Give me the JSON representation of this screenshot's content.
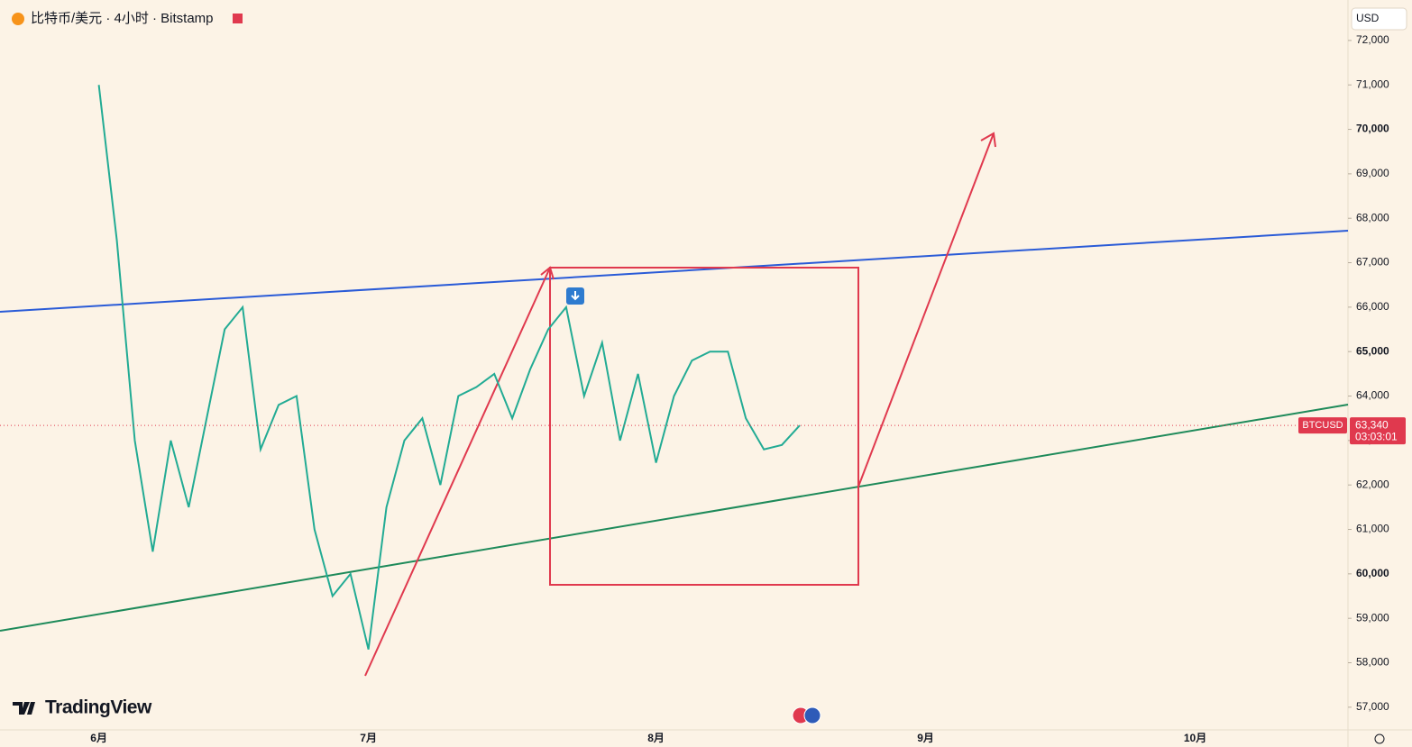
{
  "chart_data": {
    "type": "line",
    "title": "比特币/美元 · 4小时 · Bitstamp",
    "currency": "USD",
    "symbol": "BTCUSD",
    "current_price": {
      "value": 63340,
      "label": "63,340"
    },
    "countdown": "03:03:01",
    "brand": "TradingView",
    "categories": [
      null,
      null,
      null,
      null,
      null,
      "6月",
      null,
      null,
      null,
      null,
      null,
      null,
      null,
      null,
      null,
      null,
      null,
      null,
      null,
      null,
      "7月",
      null,
      null,
      null,
      null,
      null,
      null,
      null,
      null,
      null,
      null,
      null,
      null,
      null,
      null,
      null,
      "8月",
      null,
      null,
      null,
      null,
      null,
      null,
      null,
      null,
      null,
      null,
      null,
      null,
      null,
      null,
      "9月",
      null,
      null,
      null,
      null,
      null,
      null,
      null,
      null,
      null,
      null,
      null,
      null,
      null,
      null,
      "10月",
      null,
      null,
      null,
      null,
      null,
      null,
      null,
      null
    ],
    "series": [
      {
        "name": "BTCUSD",
        "color": "#22ab94",
        "values": [
          null,
          null,
          null,
          null,
          null,
          71000,
          67500,
          63000,
          60500,
          63000,
          61500,
          63500,
          65500,
          66000,
          62800,
          63800,
          64000,
          61000,
          59500,
          60000,
          58300,
          61500,
          63000,
          63500,
          62000,
          64000,
          64200,
          64500,
          63500,
          64600,
          65500,
          66000,
          64000,
          65200,
          63000,
          64500,
          62500,
          64000,
          64800,
          65000,
          65000,
          63500,
          62800,
          62900,
          63340,
          null,
          null,
          null,
          null,
          null,
          null,
          null,
          null,
          null,
          null,
          null,
          null,
          null,
          null,
          null,
          null,
          null,
          null,
          null,
          null,
          null,
          null,
          null,
          null,
          null,
          null,
          null,
          null,
          null,
          null
        ]
      }
    ],
    "ylim": [
      56490,
      72910
    ],
    "yticks": [
      {
        "value": 57000,
        "label": "57,000"
      },
      {
        "value": 58000,
        "label": "58,000"
      },
      {
        "value": 59000,
        "label": "59,000"
      },
      {
        "value": 60000,
        "label": "60,000"
      },
      {
        "value": 61000,
        "label": "61,000"
      },
      {
        "value": 62000,
        "label": "62,000"
      },
      {
        "value": 63000,
        "label": "63,000"
      },
      {
        "value": 64000,
        "label": "64,000"
      },
      {
        "value": 65000,
        "label": "65,000"
      },
      {
        "value": 66000,
        "label": "66,000"
      },
      {
        "value": 67000,
        "label": "67,000"
      },
      {
        "value": 68000,
        "label": "68,000"
      },
      {
        "value": 69000,
        "label": "69,000"
      },
      {
        "value": 70000,
        "label": "70,000"
      },
      {
        "value": 71000,
        "label": "71,000"
      },
      {
        "value": 72000,
        "label": "72,000"
      }
    ],
    "grid": false
  }
}
